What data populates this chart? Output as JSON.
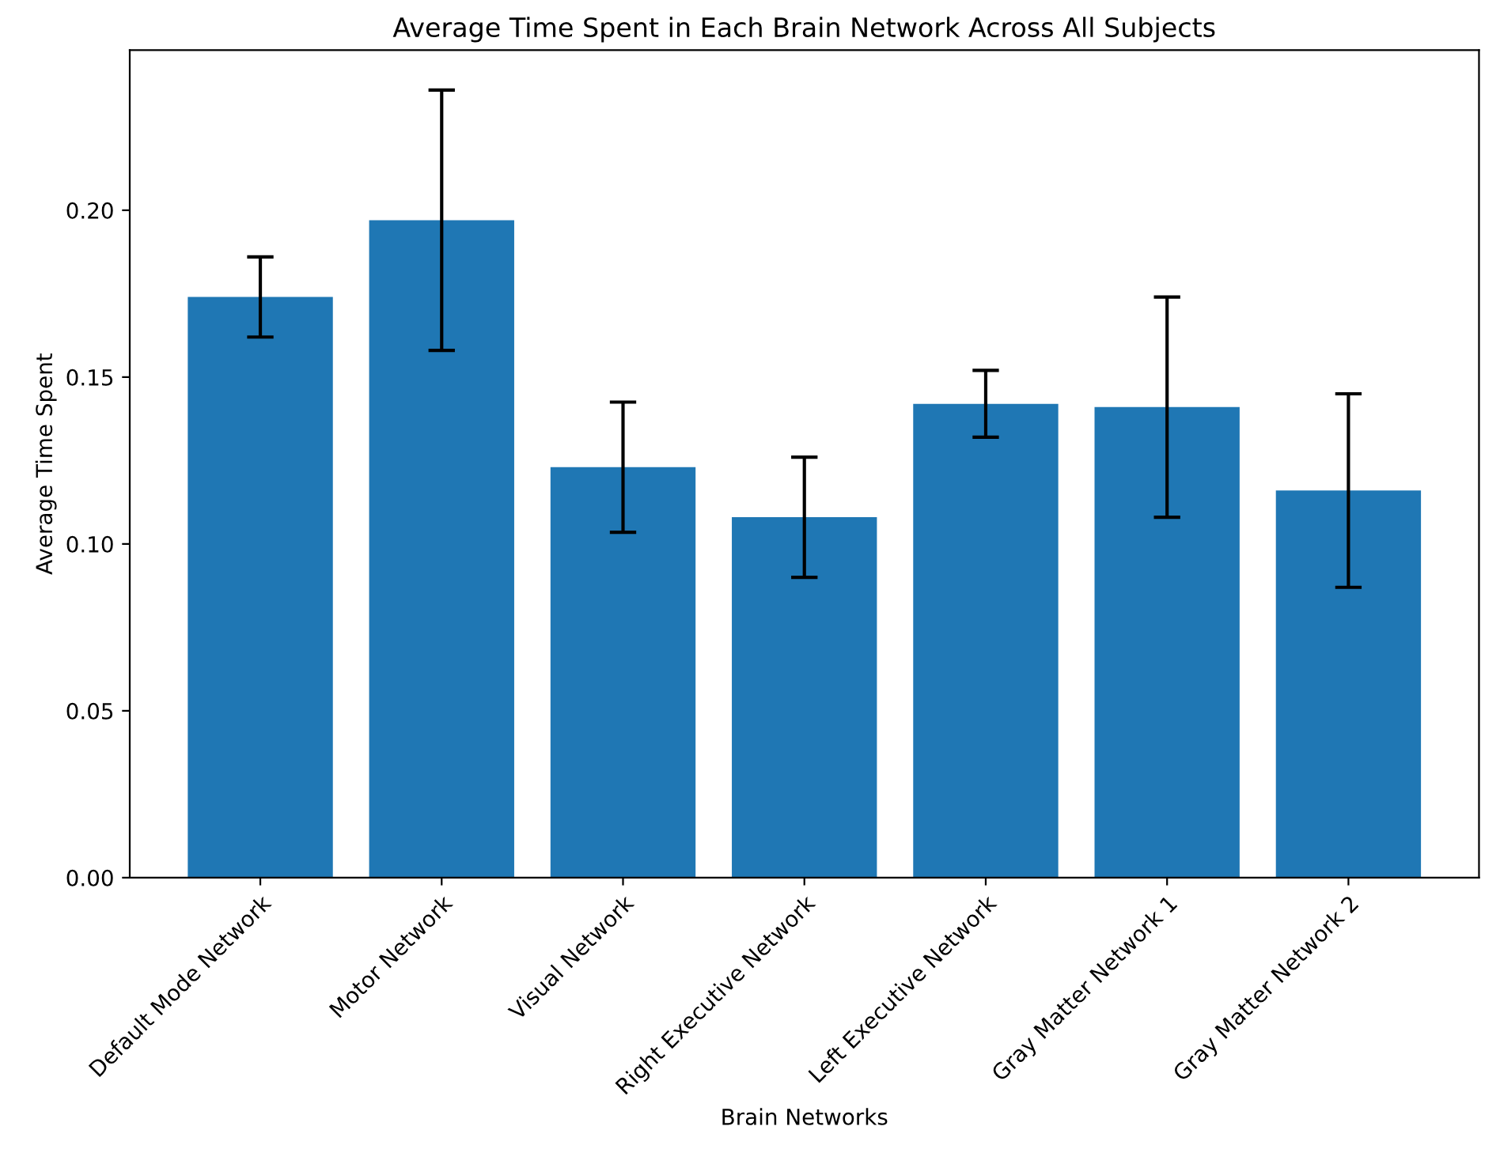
{
  "chart_data": {
    "type": "bar",
    "title": "Average Time Spent in Each Brain Network Across All Subjects",
    "xlabel": "Brain Networks",
    "ylabel": "Average Time Spent",
    "categories": [
      "Default Mode Network",
      "Motor Network",
      "Visual Network",
      "Right Executive Network",
      "Left Executive Network",
      "Gray Matter Network 1",
      "Gray Matter Network 2"
    ],
    "values": [
      0.174,
      0.197,
      0.123,
      0.108,
      0.142,
      0.141,
      0.116
    ],
    "errors": [
      0.012,
      0.039,
      0.0195,
      0.018,
      0.01,
      0.033,
      0.029
    ],
    "color": "#1f77b4",
    "ylim": [
      0,
      0.248
    ],
    "yticks": [
      {
        "value": 0,
        "label": "0.00"
      },
      {
        "value": 0.05,
        "label": "0.05"
      },
      {
        "value": 0.1,
        "label": "0.10"
      },
      {
        "value": 0.15,
        "label": "0.15"
      },
      {
        "value": 0.2,
        "label": "0.20"
      }
    ],
    "grid": false,
    "legend": false
  }
}
